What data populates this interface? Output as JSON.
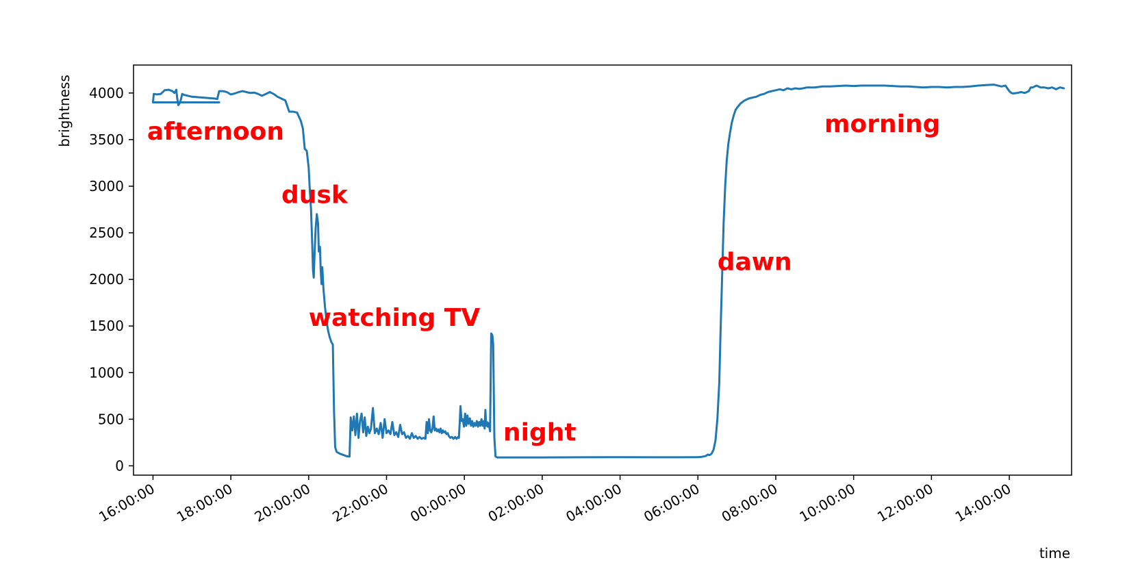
{
  "chart_data": {
    "type": "line",
    "title": "",
    "xlabel": "time",
    "ylabel": "brightness",
    "x_unit": "hours",
    "xlim": [
      15.5,
      39.6
    ],
    "ylim": [
      -100,
      4300
    ],
    "x_ticks": [
      {
        "value": 16,
        "label": "16:00:00"
      },
      {
        "value": 18,
        "label": "18:00:00"
      },
      {
        "value": 20,
        "label": "20:00:00"
      },
      {
        "value": 22,
        "label": "22:00:00"
      },
      {
        "value": 24,
        "label": "00:00:00"
      },
      {
        "value": 26,
        "label": "02:00:00"
      },
      {
        "value": 28,
        "label": "04:00:00"
      },
      {
        "value": 30,
        "label": "06:00:00"
      },
      {
        "value": 32,
        "label": "08:00:00"
      },
      {
        "value": 34,
        "label": "10:00:00"
      },
      {
        "value": 36,
        "label": "12:00:00"
      },
      {
        "value": 38,
        "label": "14:00:00"
      }
    ],
    "y_ticks": [
      {
        "value": 0,
        "label": "0"
      },
      {
        "value": 500,
        "label": "500"
      },
      {
        "value": 1000,
        "label": "1000"
      },
      {
        "value": 1500,
        "label": "1500"
      },
      {
        "value": 2000,
        "label": "2000"
      },
      {
        "value": 2500,
        "label": "2500"
      },
      {
        "value": 3000,
        "label": "3000"
      },
      {
        "value": 3500,
        "label": "3500"
      },
      {
        "value": 4000,
        "label": "4000"
      }
    ],
    "grid": false,
    "legend": "none",
    "line_color": "#1f77b4",
    "annotation_color": "#ff0000",
    "annotations": [
      {
        "text": "afternoon",
        "x": 15.85,
        "y": 3500
      },
      {
        "text": "dusk",
        "x": 19.3,
        "y": 2820
      },
      {
        "text": "watching TV",
        "x": 20.0,
        "y": 1500
      },
      {
        "text": "night",
        "x": 25.0,
        "y": 270
      },
      {
        "text": "dawn",
        "x": 30.5,
        "y": 2100
      },
      {
        "text": "morning",
        "x": 33.25,
        "y": 3580
      }
    ],
    "series": [
      {
        "points": [
          [
            17.7,
            3900
          ],
          [
            16.0,
            3900
          ],
          [
            16.02,
            3990
          ],
          [
            16.1,
            3985
          ],
          [
            16.2,
            3990
          ],
          [
            16.3,
            4030
          ],
          [
            16.4,
            4035
          ],
          [
            16.5,
            4020
          ],
          [
            16.55,
            4000
          ],
          [
            16.6,
            4035
          ],
          [
            16.62,
            3950
          ],
          [
            16.65,
            3870
          ],
          [
            16.7,
            3900
          ],
          [
            16.75,
            3990
          ],
          [
            16.8,
            3980
          ],
          [
            17.0,
            3960
          ],
          [
            17.3,
            3950
          ],
          [
            17.6,
            3940
          ],
          [
            17.65,
            3935
          ],
          [
            17.7,
            4020
          ],
          [
            17.8,
            4020
          ],
          [
            17.9,
            4010
          ],
          [
            18.0,
            3985
          ],
          [
            18.1,
            3995
          ],
          [
            18.2,
            4010
          ],
          [
            18.3,
            4020
          ],
          [
            18.4,
            4010
          ],
          [
            18.5,
            4000
          ],
          [
            18.6,
            4005
          ],
          [
            18.7,
            3990
          ],
          [
            18.8,
            3970
          ],
          [
            18.9,
            3990
          ],
          [
            19.0,
            4010
          ],
          [
            19.1,
            3990
          ],
          [
            19.2,
            3960
          ],
          [
            19.3,
            3940
          ],
          [
            19.4,
            3920
          ],
          [
            19.5,
            3800
          ],
          [
            19.6,
            3800
          ],
          [
            19.7,
            3790
          ],
          [
            19.8,
            3700
          ],
          [
            19.85,
            3620
          ],
          [
            19.9,
            3400
          ],
          [
            19.95,
            3380
          ],
          [
            20.0,
            3200
          ],
          [
            20.03,
            2950
          ],
          [
            20.06,
            2760
          ],
          [
            20.09,
            2400
          ],
          [
            20.11,
            2100
          ],
          [
            20.13,
            2020
          ],
          [
            20.15,
            2250
          ],
          [
            20.18,
            2550
          ],
          [
            20.21,
            2700
          ],
          [
            20.24,
            2600
          ],
          [
            20.26,
            2300
          ],
          [
            20.29,
            2350
          ],
          [
            20.31,
            2100
          ],
          [
            20.33,
            1950
          ],
          [
            20.35,
            2130
          ],
          [
            20.38,
            1900
          ],
          [
            20.42,
            1700
          ],
          [
            20.46,
            1550
          ],
          [
            20.5,
            1450
          ],
          [
            20.54,
            1380
          ],
          [
            20.58,
            1330
          ],
          [
            20.62,
            1300
          ],
          [
            20.65,
            600
          ],
          [
            20.68,
            200
          ],
          [
            20.72,
            150
          ],
          [
            20.8,
            130
          ],
          [
            20.9,
            115
          ],
          [
            21.0,
            100
          ],
          [
            21.05,
            100
          ],
          [
            21.08,
            520
          ],
          [
            21.12,
            380
          ],
          [
            21.16,
            530
          ],
          [
            21.2,
            330
          ],
          [
            21.24,
            560
          ],
          [
            21.28,
            300
          ],
          [
            21.32,
            480
          ],
          [
            21.36,
            560
          ],
          [
            21.4,
            360
          ],
          [
            21.44,
            520
          ],
          [
            21.48,
            320
          ],
          [
            21.52,
            420
          ],
          [
            21.56,
            350
          ],
          [
            21.6,
            400
          ],
          [
            21.65,
            620
          ],
          [
            21.7,
            350
          ],
          [
            21.75,
            400
          ],
          [
            21.8,
            340
          ],
          [
            21.85,
            460
          ],
          [
            21.9,
            300
          ],
          [
            21.95,
            500
          ],
          [
            22.0,
            350
          ],
          [
            22.05,
            380
          ],
          [
            22.1,
            340
          ],
          [
            22.15,
            470
          ],
          [
            22.2,
            330
          ],
          [
            22.25,
            360
          ],
          [
            22.3,
            310
          ],
          [
            22.35,
            440
          ],
          [
            22.4,
            340
          ],
          [
            22.45,
            360
          ],
          [
            22.5,
            300
          ],
          [
            22.55,
            320
          ],
          [
            22.6,
            290
          ],
          [
            22.65,
            350
          ],
          [
            22.7,
            300
          ],
          [
            22.75,
            320
          ],
          [
            22.8,
            290
          ],
          [
            22.85,
            310
          ],
          [
            22.9,
            290
          ],
          [
            22.95,
            300
          ],
          [
            23.0,
            290
          ],
          [
            23.03,
            470
          ],
          [
            23.06,
            350
          ],
          [
            23.09,
            500
          ],
          [
            23.12,
            380
          ],
          [
            23.15,
            360
          ],
          [
            23.18,
            400
          ],
          [
            23.21,
            530
          ],
          [
            23.24,
            380
          ],
          [
            23.27,
            400
          ],
          [
            23.3,
            370
          ],
          [
            23.33,
            390
          ],
          [
            23.36,
            360
          ],
          [
            23.39,
            400
          ],
          [
            23.42,
            350
          ],
          [
            23.45,
            380
          ],
          [
            23.48,
            360
          ],
          [
            23.51,
            370
          ],
          [
            23.54,
            340
          ],
          [
            23.57,
            350
          ],
          [
            23.6,
            320
          ],
          [
            23.64,
            300
          ],
          [
            23.68,
            310
          ],
          [
            23.72,
            290
          ],
          [
            23.76,
            310
          ],
          [
            23.8,
            290
          ],
          [
            23.84,
            310
          ],
          [
            23.86,
            300
          ],
          [
            23.88,
            460
          ],
          [
            23.9,
            640
          ],
          [
            23.93,
            480
          ],
          [
            23.96,
            500
          ],
          [
            23.99,
            420
          ],
          [
            24.02,
            560
          ],
          [
            24.05,
            430
          ],
          [
            24.08,
            540
          ],
          [
            24.11,
            450
          ],
          [
            24.14,
            510
          ],
          [
            24.17,
            430
          ],
          [
            24.2,
            480
          ],
          [
            24.23,
            420
          ],
          [
            24.26,
            460
          ],
          [
            24.29,
            430
          ],
          [
            24.32,
            480
          ],
          [
            24.35,
            420
          ],
          [
            24.38,
            470
          ],
          [
            24.41,
            430
          ],
          [
            24.44,
            500
          ],
          [
            24.47,
            430
          ],
          [
            24.5,
            480
          ],
          [
            24.52,
            400
          ],
          [
            24.54,
            600
          ],
          [
            24.56,
            430
          ],
          [
            24.58,
            470
          ],
          [
            24.6,
            420
          ],
          [
            24.62,
            460
          ],
          [
            24.64,
            420
          ],
          [
            24.66,
            370
          ],
          [
            24.69,
            1420
          ],
          [
            24.72,
            1400
          ],
          [
            24.74,
            1300
          ],
          [
            24.77,
            300
          ],
          [
            24.8,
            100
          ],
          [
            24.85,
            90
          ],
          [
            25.0,
            90
          ],
          [
            26.0,
            90
          ],
          [
            27.0,
            92
          ],
          [
            28.0,
            93
          ],
          [
            29.0,
            92
          ],
          [
            29.5,
            92
          ],
          [
            30.0,
            93
          ],
          [
            30.1,
            97
          ],
          [
            30.2,
            105
          ],
          [
            30.25,
            120
          ],
          [
            30.3,
            115
          ],
          [
            30.35,
            130
          ],
          [
            30.4,
            170
          ],
          [
            30.45,
            270
          ],
          [
            30.5,
            500
          ],
          [
            30.55,
            900
          ],
          [
            30.58,
            1400
          ],
          [
            30.62,
            2000
          ],
          [
            30.66,
            2600
          ],
          [
            30.7,
            3000
          ],
          [
            30.74,
            3270
          ],
          [
            30.78,
            3450
          ],
          [
            30.82,
            3560
          ],
          [
            30.87,
            3680
          ],
          [
            30.92,
            3760
          ],
          [
            30.97,
            3820
          ],
          [
            31.02,
            3850
          ],
          [
            31.1,
            3890
          ],
          [
            31.2,
            3920
          ],
          [
            31.3,
            3940
          ],
          [
            31.4,
            3950
          ],
          [
            31.5,
            3960
          ],
          [
            31.6,
            3980
          ],
          [
            31.7,
            3990
          ],
          [
            31.8,
            4010
          ],
          [
            31.9,
            4020
          ],
          [
            32.0,
            4030
          ],
          [
            32.1,
            4040
          ],
          [
            32.2,
            4030
          ],
          [
            32.3,
            4050
          ],
          [
            32.4,
            4040
          ],
          [
            32.5,
            4050
          ],
          [
            32.6,
            4045
          ],
          [
            32.7,
            4050
          ],
          [
            32.8,
            4060
          ],
          [
            33.0,
            4060
          ],
          [
            33.2,
            4070
          ],
          [
            33.4,
            4070
          ],
          [
            33.6,
            4075
          ],
          [
            33.8,
            4080
          ],
          [
            34.0,
            4075
          ],
          [
            34.2,
            4080
          ],
          [
            34.4,
            4080
          ],
          [
            34.6,
            4080
          ],
          [
            34.8,
            4080
          ],
          [
            35.0,
            4075
          ],
          [
            35.2,
            4070
          ],
          [
            35.4,
            4070
          ],
          [
            35.6,
            4065
          ],
          [
            35.8,
            4060
          ],
          [
            36.0,
            4065
          ],
          [
            36.2,
            4065
          ],
          [
            36.4,
            4060
          ],
          [
            36.6,
            4065
          ],
          [
            36.8,
            4065
          ],
          [
            37.0,
            4070
          ],
          [
            37.2,
            4080
          ],
          [
            37.4,
            4085
          ],
          [
            37.6,
            4090
          ],
          [
            37.8,
            4070
          ],
          [
            37.9,
            4080
          ],
          [
            38.0,
            4020
          ],
          [
            38.05,
            4000
          ],
          [
            38.1,
            3995
          ],
          [
            38.2,
            4000
          ],
          [
            38.3,
            4010
          ],
          [
            38.4,
            4000
          ],
          [
            38.5,
            4020
          ],
          [
            38.55,
            4060
          ],
          [
            38.6,
            4060
          ],
          [
            38.7,
            4080
          ],
          [
            38.8,
            4060
          ],
          [
            38.9,
            4060
          ],
          [
            39.0,
            4050
          ],
          [
            39.1,
            4060
          ],
          [
            39.2,
            4040
          ],
          [
            39.3,
            4060
          ],
          [
            39.4,
            4050
          ]
        ]
      }
    ]
  }
}
